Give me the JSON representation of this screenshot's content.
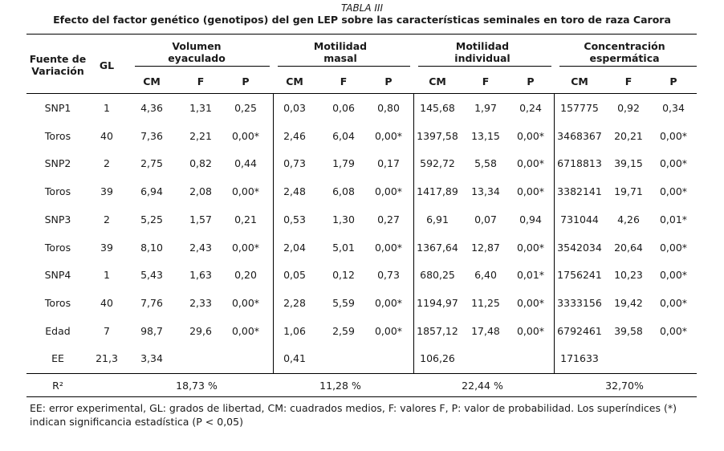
{
  "caption": {
    "label": "TABLA III",
    "title": "Efecto del factor genético (genotipos) del gen LEP sobre las características seminales en toro de raza Carora"
  },
  "headers": {
    "source_line1": "Fuente de",
    "source_line2": "Variación",
    "gl": "GL",
    "groups": [
      {
        "line1": "Volumen",
        "line2": "eyaculado"
      },
      {
        "line1": "Motilidad",
        "line2": "masal"
      },
      {
        "line1": "Motilidad",
        "line2": "individual"
      },
      {
        "line1": "Concentración",
        "line2": "espermática"
      }
    ],
    "sub": [
      "CM",
      "F",
      "P"
    ]
  },
  "rows": [
    {
      "fuente": "SNP1",
      "gl": "1",
      "cells": [
        "4,36",
        "1,31",
        "0,25",
        "0,03",
        "0,06",
        "0,80",
        "145,68",
        "1,97",
        "0,24",
        "157775",
        "0,92",
        "0,34"
      ]
    },
    {
      "fuente": "Toros",
      "gl": "40",
      "cells": [
        "7,36",
        "2,21",
        "0,00*",
        "2,46",
        "6,04",
        "0,00*",
        "1397,58",
        "13,15",
        "0,00*",
        "3468367",
        "20,21",
        "0,00*"
      ]
    },
    {
      "fuente": "SNP2",
      "gl": "2",
      "cells": [
        "2,75",
        "0,82",
        "0,44",
        "0,73",
        "1,79",
        "0,17",
        "592,72",
        "5,58",
        "0,00*",
        "6718813",
        "39,15",
        "0,00*"
      ]
    },
    {
      "fuente": "Toros",
      "gl": "39",
      "cells": [
        "6,94",
        "2,08",
        "0,00*",
        "2,48",
        "6,08",
        "0,00*",
        "1417,89",
        "13,34",
        "0,00*",
        "3382141",
        "19,71",
        "0,00*"
      ]
    },
    {
      "fuente": "SNP3",
      "gl": "2",
      "cells": [
        "5,25",
        "1,57",
        "0,21",
        "0,53",
        "1,30",
        "0,27",
        "6,91",
        "0,07",
        "0,94",
        "731044",
        "4,26",
        "0,01*"
      ]
    },
    {
      "fuente": "Toros",
      "gl": "39",
      "cells": [
        "8,10",
        "2,43",
        "0,00*",
        "2,04",
        "5,01",
        "0,00*",
        "1367,64",
        "12,87",
        "0,00*",
        "3542034",
        "20,64",
        "0,00*"
      ]
    },
    {
      "fuente": "SNP4",
      "gl": "1",
      "cells": [
        "5,43",
        "1,63",
        "0,20",
        "0,05",
        "0,12",
        "0,73",
        "680,25",
        "6,40",
        "0,01*",
        "1756241",
        "10,23",
        "0,00*"
      ]
    },
    {
      "fuente": "Toros",
      "gl": "40",
      "cells": [
        "7,76",
        "2,33",
        "0,00*",
        "2,28",
        "5,59",
        "0,00*",
        "1194,97",
        "11,25",
        "0,00*",
        "3333156",
        "19,42",
        "0,00*"
      ]
    },
    {
      "fuente": "Edad",
      "gl": "7",
      "cells": [
        "98,7",
        "29,6",
        "0,00*",
        "1,06",
        "2,59",
        "0,00*",
        "1857,12",
        "17,48",
        "0,00*",
        "6792461",
        "39,58",
        "0,00*"
      ]
    },
    {
      "fuente": "EE",
      "gl": "21,3",
      "cells": [
        "3,34",
        "",
        "",
        "0,41",
        "",
        "",
        "106,26",
        "",
        "",
        "171633",
        "",
        ""
      ]
    }
  ],
  "r2": {
    "label": "R²",
    "values": [
      "18,73 %",
      "11,28 %",
      "22,44 %",
      "32,70%"
    ]
  },
  "footnote": "EE: error experimental, GL: grados de libertad, CM: cuadrados medios, F: valores F, P: valor de probabilidad. Los superíndices (*) indican significancia estadística (P < 0,05)"
}
